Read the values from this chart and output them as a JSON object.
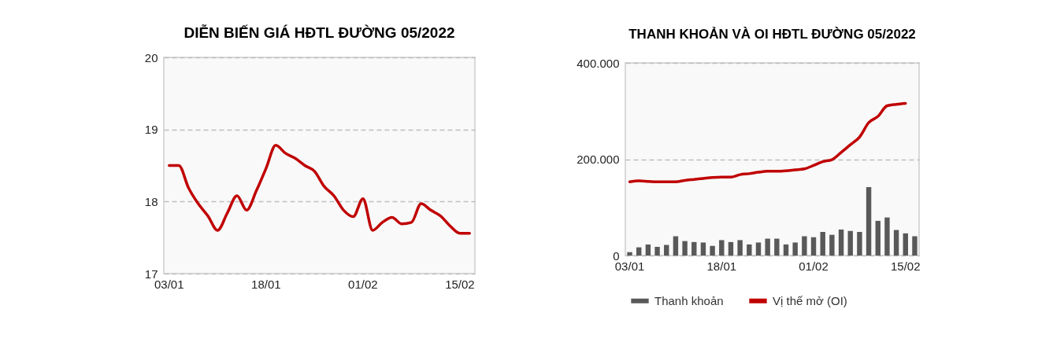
{
  "chart_data": [
    {
      "type": "line",
      "title": "DIỄN BIẾN GIÁ HĐTL ĐƯỜNG 05/2022",
      "categories": [
        "03/01",
        null,
        null,
        null,
        null,
        null,
        null,
        null,
        null,
        null,
        "18/01",
        null,
        null,
        null,
        null,
        null,
        null,
        null,
        null,
        null,
        "01/02",
        null,
        null,
        null,
        null,
        null,
        null,
        null,
        null,
        null,
        "15/02",
        null
      ],
      "series": [
        {
          "color": "#c00000",
          "values": [
            18.5,
            18.5,
            18.19,
            17.97,
            17.8,
            17.6,
            17.84,
            18.08,
            17.88,
            18.15,
            18.46,
            18.78,
            18.67,
            18.6,
            18.5,
            18.42,
            18.21,
            18.08,
            17.88,
            17.79,
            18.04,
            17.6,
            17.71,
            17.78,
            17.69,
            17.71,
            17.97,
            17.88,
            17.8,
            17.66,
            17.56,
            17.56
          ]
        }
      ],
      "ylim": [
        17,
        20
      ],
      "yticks": [
        17,
        18,
        19,
        20
      ],
      "grid": "y"
    },
    {
      "type": "bar",
      "title": "THANH KHOẢN VÀ OI HĐTL ĐƯỜNG 05/2022",
      "categories": [
        "03/01",
        null,
        null,
        null,
        null,
        null,
        null,
        null,
        null,
        null,
        "18/01",
        null,
        null,
        null,
        null,
        null,
        null,
        null,
        null,
        null,
        "01/02",
        null,
        null,
        null,
        null,
        null,
        null,
        null,
        null,
        null,
        "15/02",
        null
      ],
      "series": [
        {
          "name": "Thanh khoản",
          "type": "bar",
          "color": "#595959",
          "values": [
            7000,
            17000,
            23000,
            18000,
            22000,
            40000,
            30000,
            28000,
            27000,
            20000,
            32000,
            28000,
            32000,
            23000,
            27000,
            35000,
            35000,
            23000,
            27000,
            40000,
            38000,
            49000,
            43000,
            54000,
            51000,
            49000,
            142000,
            72000,
            79000,
            53000,
            46000,
            40000
          ]
        },
        {
          "name": "Vị thế mở (OI)",
          "type": "line",
          "color": "#c00000",
          "values": [
            153000,
            155000,
            154000,
            153000,
            153000,
            153000,
            156000,
            158000,
            160000,
            162000,
            163000,
            163000,
            168000,
            170000,
            173000,
            175000,
            175000,
            176000,
            178000,
            180000,
            187000,
            195000,
            199000,
            214000,
            230000,
            246000,
            276000,
            289000,
            311000,
            314000,
            316000,
            null
          ]
        }
      ],
      "ylim": [
        0,
        400000
      ],
      "yticks": [
        {
          "value": 0,
          "label": "0"
        },
        {
          "value": 200000,
          "label": "200.000"
        },
        {
          "value": 400000,
          "label": "400.000"
        }
      ],
      "grid": "y",
      "legend": "bottom"
    }
  ]
}
